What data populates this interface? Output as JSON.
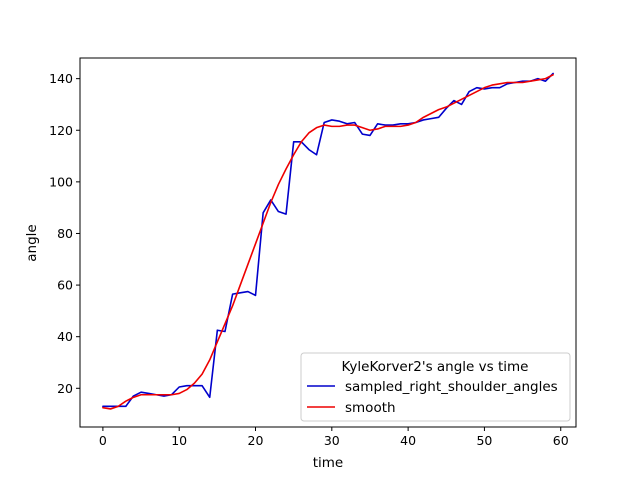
{
  "chart_data": {
    "type": "line",
    "title": "",
    "xlabel": "time",
    "ylabel": "angle",
    "xlim": [
      -3,
      62
    ],
    "ylim": [
      5,
      148
    ],
    "x_ticks": [
      0,
      10,
      20,
      30,
      40,
      50,
      60
    ],
    "y_ticks": [
      20,
      40,
      60,
      80,
      100,
      120,
      140
    ],
    "grid": false,
    "legend": {
      "title": "KyleKorver2's angle vs time",
      "placement": "lower-right"
    },
    "series": [
      {
        "name": "sampled_right_shoulder_angles",
        "color": "#0000cc",
        "x": [
          0,
          1,
          2,
          3,
          4,
          5,
          6,
          7,
          8,
          9,
          10,
          11,
          12,
          13,
          14,
          15,
          16,
          17,
          18,
          19,
          20,
          21,
          22,
          23,
          24,
          25,
          26,
          27,
          28,
          29,
          30,
          31,
          32,
          33,
          34,
          35,
          36,
          37,
          38,
          39,
          40,
          41,
          42,
          43,
          44,
          45,
          46,
          47,
          48,
          49,
          50,
          51,
          52,
          53,
          54,
          55,
          56,
          57,
          58,
          59
        ],
        "y": [
          13,
          13,
          13,
          13,
          17,
          18.5,
          18,
          17.5,
          17,
          17.5,
          20.5,
          21,
          21,
          21,
          16.5,
          42.5,
          42,
          56.5,
          57,
          57.5,
          56,
          88,
          93,
          88.5,
          87.5,
          115.5,
          115.5,
          112.5,
          110.5,
          123,
          124,
          123.5,
          122.5,
          123,
          118.5,
          118,
          122.5,
          122,
          122,
          122.5,
          122.5,
          123,
          124,
          124.5,
          125,
          128.5,
          131.5,
          130,
          135,
          136.5,
          136,
          136.5,
          136.5,
          138,
          138.5,
          139,
          139,
          140,
          139,
          142
        ]
      },
      {
        "name": "smooth",
        "color": "#ee0000",
        "x": [
          0,
          1,
          2,
          3,
          4,
          5,
          6,
          7,
          8,
          9,
          10,
          11,
          12,
          13,
          14,
          15,
          16,
          17,
          18,
          19,
          20,
          21,
          22,
          23,
          24,
          25,
          26,
          27,
          28,
          29,
          30,
          31,
          32,
          33,
          34,
          35,
          36,
          37,
          38,
          39,
          40,
          41,
          42,
          43,
          44,
          45,
          46,
          47,
          48,
          49,
          50,
          51,
          52,
          53,
          54,
          55,
          56,
          57,
          58,
          59
        ],
        "y": [
          12.5,
          12,
          13,
          15,
          16.5,
          17.5,
          17.5,
          17.5,
          17.5,
          17.5,
          18,
          19.5,
          22,
          25.5,
          31,
          38,
          45,
          52,
          60,
          68,
          76,
          84,
          92,
          99,
          105,
          110.5,
          115.5,
          119,
          121,
          122,
          121.5,
          121.5,
          122,
          122,
          121,
          120,
          120.5,
          121.5,
          121.5,
          121.5,
          122,
          123,
          125,
          126.5,
          128,
          129,
          130.5,
          132,
          133.5,
          135,
          136.5,
          137.5,
          138,
          138.5,
          138.5,
          138.5,
          139,
          139.5,
          140,
          141.5
        ]
      }
    ]
  }
}
